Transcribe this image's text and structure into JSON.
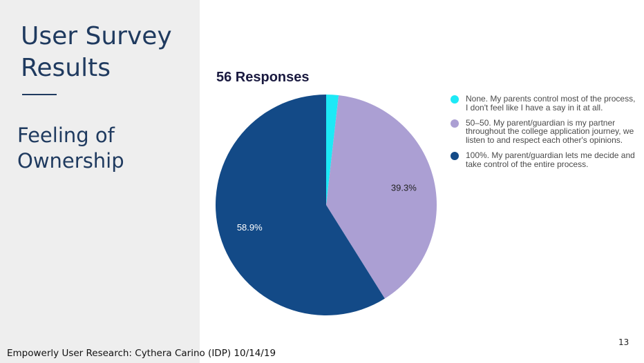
{
  "slide": {
    "title": "User Survey Results",
    "subtitle": "Feeling of Ownership",
    "footer": "Empowerly User Research: Cythera Carino (IDP) 10/14/19",
    "page_number": "13"
  },
  "chart_data": {
    "type": "pie",
    "title": "56 Responses",
    "slices": [
      {
        "label": "None. My parents control most of the process, I don't feel like I have a say in it at all.",
        "value": 1.8,
        "color": "#1de9f6",
        "data_label": ""
      },
      {
        "label": "50–50. My parent/guardian is my partner throughout the college application journey, we listen to and respect each other's opinions.",
        "value": 39.3,
        "color": "#ab9fd3",
        "data_label": "39.3%",
        "label_color": "#222222"
      },
      {
        "label": "100%. My parent/guardian lets me decide and take control of the entire process.",
        "value": 58.9,
        "color": "#134a87",
        "data_label": "58.9%",
        "label_color": "#ffffff"
      }
    ],
    "legend_position": "right"
  }
}
